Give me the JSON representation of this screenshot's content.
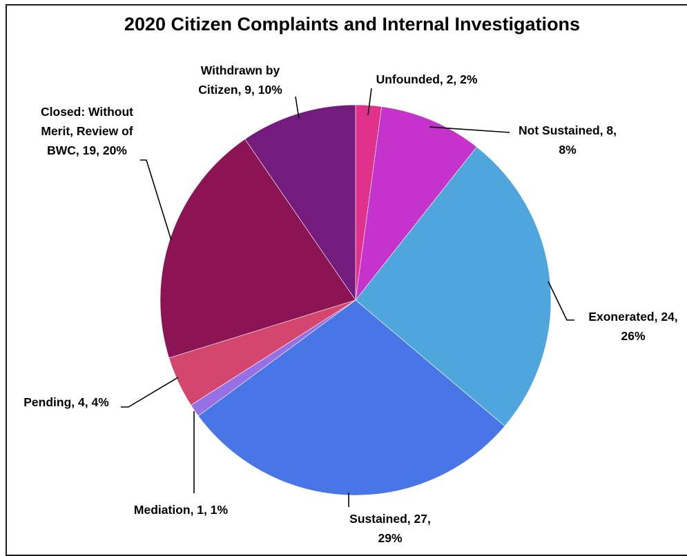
{
  "chart_data": {
    "type": "pie",
    "title": "2020 Citizen Complaints and Internal Investigations",
    "slices": [
      {
        "name": "Unfounded",
        "value": 2,
        "percent": "2%",
        "color": "#E0328A",
        "label_lines": [
          "Unfounded, 2, 2%"
        ]
      },
      {
        "name": "Not Sustained",
        "value": 8,
        "percent": "8%",
        "color": "#C533CC",
        "label_lines": [
          "Not Sustained, 8,",
          "8%"
        ]
      },
      {
        "name": "Exonerated",
        "value": 24,
        "percent": "26%",
        "color": "#4FA6DC",
        "label_lines": [
          "Exonerated, 24,",
          "26%"
        ]
      },
      {
        "name": "Sustained",
        "value": 27,
        "percent": "29%",
        "color": "#4876E6",
        "label_lines": [
          "Sustained, 27,",
          "29%"
        ]
      },
      {
        "name": "Mediation",
        "value": 1,
        "percent": "1%",
        "color": "#9770E6",
        "label_lines": [
          "Mediation, 1, 1%"
        ]
      },
      {
        "name": "Pending",
        "value": 4,
        "percent": "4%",
        "color": "#D5466E",
        "label_lines": [
          "Pending, 4, 4%"
        ]
      },
      {
        "name": "Closed: Without Merit, Review of BWC",
        "value": 19,
        "percent": "20%",
        "color": "#8C1354",
        "label_lines": [
          "Closed:  Without",
          "Merit, Review of",
          "BWC, 19, 20%"
        ]
      },
      {
        "name": "Withdrawn by Citizen",
        "value": 9,
        "percent": "10%",
        "color": "#731C7D",
        "label_lines": [
          "Withdrawn by",
          "Citizen, 9, 10%"
        ]
      }
    ]
  }
}
